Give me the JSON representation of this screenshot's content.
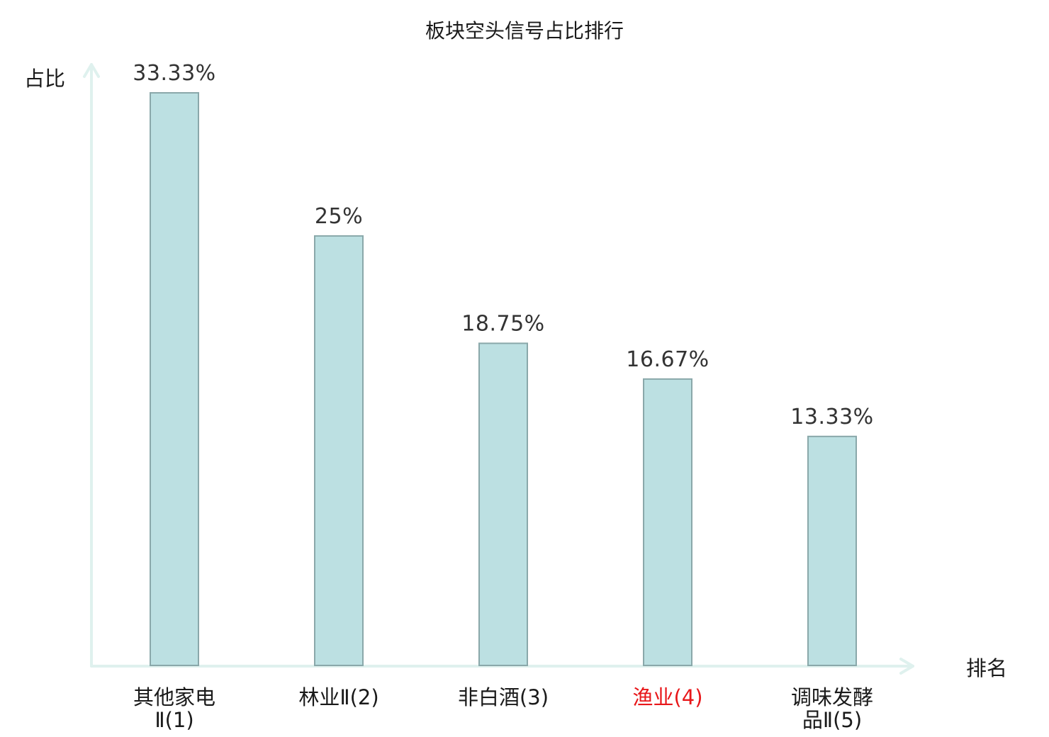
{
  "chart_data": {
    "type": "bar",
    "title": "板块空头信号占比排行",
    "xlabel": "排名",
    "ylabel": "占比",
    "categories": [
      {
        "name": "其他家电",
        "suffix": "Ⅱ",
        "rank": "(1)",
        "highlight": false
      },
      {
        "name": "林业",
        "suffix": "Ⅱ",
        "rank": "(2)",
        "highlight": false
      },
      {
        "name": "非白酒",
        "suffix": "",
        "rank": "(3)",
        "highlight": false
      },
      {
        "name": "渔业",
        "suffix": "",
        "rank": "(4)",
        "highlight": true
      },
      {
        "name": "调味发酵品",
        "suffix": "Ⅱ",
        "rank": "(5)",
        "highlight": false
      }
    ],
    "values": [
      33.33,
      25,
      18.75,
      16.67,
      13.33
    ],
    "value_labels": [
      "33.33%",
      "25%",
      "18.75%",
      "16.67%",
      "13.33%"
    ],
    "ylim": [
      0,
      33.33
    ],
    "grid": false,
    "legend": "none",
    "colors": {
      "bar_fill": "#bce0e2",
      "bar_stroke": "#8aa8aa",
      "axis": "#dff1ee",
      "highlight_text": "#e8171a",
      "normal_text": "#1a1a1a",
      "value_text": "#333333"
    }
  }
}
